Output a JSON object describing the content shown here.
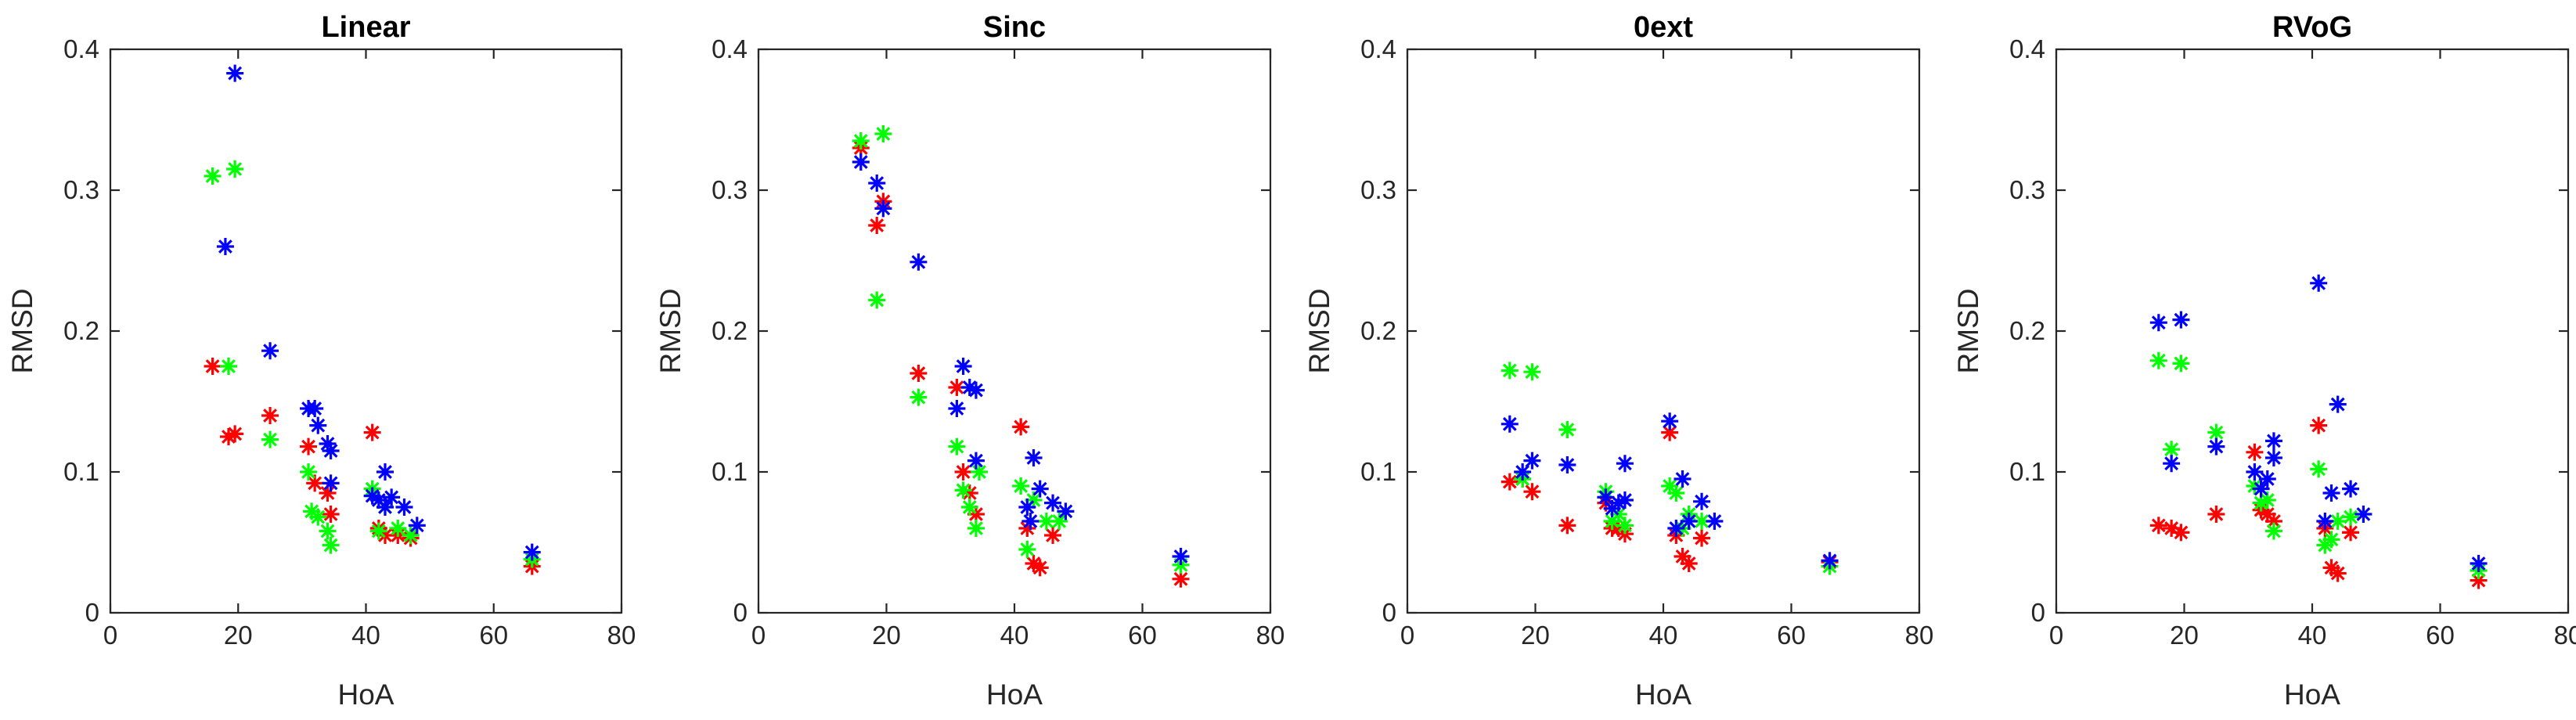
{
  "chart_data": [
    {
      "type": "scatter",
      "title": "Linear",
      "xlabel": "HoA",
      "ylabel": "RMSD",
      "xlim": [
        0,
        80
      ],
      "ylim": [
        0,
        0.4
      ],
      "xticks": [
        "0",
        "20",
        "40",
        "60",
        "80"
      ],
      "yticks": [
        "0",
        "0.1",
        "0.2",
        "0.3",
        "0.4"
      ],
      "marker": "asterisk",
      "series": [
        {
          "name": "red",
          "color": "#ff0000",
          "points": [
            [
              16,
              0.175
            ],
            [
              18.5,
              0.125
            ],
            [
              19.5,
              0.127
            ],
            [
              25,
              0.14
            ],
            [
              31,
              0.118
            ],
            [
              32,
              0.092
            ],
            [
              34,
              0.085
            ],
            [
              34.5,
              0.07
            ],
            [
              41,
              0.128
            ],
            [
              42,
              0.06
            ],
            [
              43,
              0.055
            ],
            [
              45,
              0.055
            ],
            [
              47,
              0.053
            ],
            [
              66,
              0.033
            ]
          ]
        },
        {
          "name": "green",
          "color": "#00ff00",
          "points": [
            [
              16,
              0.31
            ],
            [
              18.5,
              0.175
            ],
            [
              19.5,
              0.315
            ],
            [
              25,
              0.123
            ],
            [
              31,
              0.1
            ],
            [
              31.5,
              0.072
            ],
            [
              32.5,
              0.068
            ],
            [
              34,
              0.058
            ],
            [
              34.5,
              0.048
            ],
            [
              41,
              0.088
            ],
            [
              42,
              0.058
            ],
            [
              43,
              0.075
            ],
            [
              45,
              0.06
            ],
            [
              47,
              0.055
            ],
            [
              66,
              0.038
            ]
          ]
        },
        {
          "name": "blue",
          "color": "#0000ff",
          "points": [
            [
              18,
              0.26
            ],
            [
              19.5,
              0.383
            ],
            [
              25,
              0.186
            ],
            [
              31,
              0.145
            ],
            [
              32,
              0.145
            ],
            [
              32.5,
              0.133
            ],
            [
              34,
              0.12
            ],
            [
              34.5,
              0.115
            ],
            [
              34.5,
              0.092
            ],
            [
              41,
              0.083
            ],
            [
              42,
              0.08
            ],
            [
              43,
              0.075
            ],
            [
              43,
              0.1
            ],
            [
              44,
              0.082
            ],
            [
              46,
              0.075
            ],
            [
              48,
              0.062
            ],
            [
              66,
              0.043
            ]
          ]
        }
      ]
    },
    {
      "type": "scatter",
      "title": "Sinc",
      "xlabel": "HoA",
      "ylabel": "RMSD",
      "xlim": [
        0,
        80
      ],
      "ylim": [
        0,
        0.4
      ],
      "xticks": [
        "0",
        "20",
        "40",
        "60",
        "80"
      ],
      "yticks": [
        "0",
        "0.1",
        "0.2",
        "0.3",
        "0.4"
      ],
      "marker": "asterisk",
      "series": [
        {
          "name": "red",
          "color": "#ff0000",
          "points": [
            [
              16,
              0.33
            ],
            [
              18.5,
              0.275
            ],
            [
              19.5,
              0.292
            ],
            [
              25,
              0.17
            ],
            [
              31,
              0.16
            ],
            [
              32,
              0.1
            ],
            [
              33,
              0.085
            ],
            [
              34,
              0.07
            ],
            [
              41,
              0.132
            ],
            [
              42,
              0.06
            ],
            [
              43,
              0.035
            ],
            [
              44,
              0.032
            ],
            [
              46,
              0.055
            ],
            [
              66,
              0.024
            ]
          ]
        },
        {
          "name": "green",
          "color": "#00ff00",
          "points": [
            [
              16,
              0.335
            ],
            [
              18.5,
              0.222
            ],
            [
              19.5,
              0.34
            ],
            [
              25,
              0.153
            ],
            [
              31,
              0.118
            ],
            [
              32,
              0.087
            ],
            [
              33,
              0.075
            ],
            [
              34,
              0.06
            ],
            [
              34.5,
              0.1
            ],
            [
              41,
              0.09
            ],
            [
              42,
              0.045
            ],
            [
              43,
              0.08
            ],
            [
              45,
              0.065
            ],
            [
              47,
              0.065
            ],
            [
              66,
              0.034
            ]
          ]
        },
        {
          "name": "blue",
          "color": "#0000ff",
          "points": [
            [
              16,
              0.32
            ],
            [
              18.5,
              0.305
            ],
            [
              19.5,
              0.287
            ],
            [
              25,
              0.249
            ],
            [
              31,
              0.145
            ],
            [
              32,
              0.175
            ],
            [
              33,
              0.16
            ],
            [
              34,
              0.158
            ],
            [
              34,
              0.108
            ],
            [
              42,
              0.075
            ],
            [
              42.5,
              0.065
            ],
            [
              43,
              0.11
            ],
            [
              44,
              0.088
            ],
            [
              46,
              0.078
            ],
            [
              48,
              0.072
            ],
            [
              66,
              0.04
            ]
          ]
        }
      ]
    },
    {
      "type": "scatter",
      "title": "0ext",
      "xlabel": "HoA",
      "ylabel": "RMSD",
      "xlim": [
        0,
        80
      ],
      "ylim": [
        0,
        0.4
      ],
      "xticks": [
        "0",
        "20",
        "40",
        "60",
        "80"
      ],
      "yticks": [
        "0",
        "0.1",
        "0.2",
        "0.3",
        "0.4"
      ],
      "marker": "asterisk",
      "series": [
        {
          "name": "red",
          "color": "#ff0000",
          "points": [
            [
              16,
              0.093
            ],
            [
              18,
              0.095
            ],
            [
              19.5,
              0.086
            ],
            [
              25,
              0.062
            ],
            [
              31,
              0.078
            ],
            [
              32,
              0.06
            ],
            [
              33,
              0.06
            ],
            [
              34,
              0.056
            ],
            [
              41,
              0.128
            ],
            [
              42,
              0.055
            ],
            [
              43,
              0.04
            ],
            [
              44,
              0.035
            ],
            [
              46,
              0.053
            ],
            [
              66,
              0.036
            ]
          ]
        },
        {
          "name": "green",
          "color": "#00ff00",
          "points": [
            [
              16,
              0.172
            ],
            [
              18,
              0.095
            ],
            [
              19.5,
              0.171
            ],
            [
              25,
              0.13
            ],
            [
              31,
              0.086
            ],
            [
              32,
              0.065
            ],
            [
              33,
              0.07
            ],
            [
              34,
              0.062
            ],
            [
              41,
              0.09
            ],
            [
              42,
              0.085
            ],
            [
              43,
              0.06
            ],
            [
              44,
              0.07
            ],
            [
              46,
              0.065
            ],
            [
              66,
              0.033
            ]
          ]
        },
        {
          "name": "blue",
          "color": "#0000ff",
          "points": [
            [
              16,
              0.134
            ],
            [
              18,
              0.1
            ],
            [
              19.5,
              0.108
            ],
            [
              25,
              0.105
            ],
            [
              31,
              0.082
            ],
            [
              32,
              0.074
            ],
            [
              33,
              0.078
            ],
            [
              34,
              0.08
            ],
            [
              34,
              0.106
            ],
            [
              41,
              0.136
            ],
            [
              42,
              0.06
            ],
            [
              43,
              0.095
            ],
            [
              44,
              0.065
            ],
            [
              46,
              0.079
            ],
            [
              48,
              0.065
            ],
            [
              66,
              0.037
            ]
          ]
        }
      ]
    },
    {
      "type": "scatter",
      "title": "RVoG",
      "xlabel": "HoA",
      "ylabel": "RMSD",
      "xlim": [
        0,
        80
      ],
      "ylim": [
        0,
        0.4
      ],
      "xticks": [
        "0",
        "20",
        "40",
        "60",
        "80"
      ],
      "yticks": [
        "0",
        "0.1",
        "0.2",
        "0.3",
        "0.4"
      ],
      "marker": "asterisk",
      "series": [
        {
          "name": "red",
          "color": "#ff0000",
          "points": [
            [
              16,
              0.062
            ],
            [
              18,
              0.06
            ],
            [
              19.5,
              0.057
            ],
            [
              25,
              0.07
            ],
            [
              31,
              0.114
            ],
            [
              32,
              0.073
            ],
            [
              33,
              0.07
            ],
            [
              34,
              0.065
            ],
            [
              41,
              0.133
            ],
            [
              42,
              0.06
            ],
            [
              43,
              0.032
            ],
            [
              44,
              0.028
            ],
            [
              46,
              0.057
            ],
            [
              66,
              0.023
            ]
          ]
        },
        {
          "name": "green",
          "color": "#00ff00",
          "points": [
            [
              16,
              0.179
            ],
            [
              18,
              0.116
            ],
            [
              19.5,
              0.177
            ],
            [
              25,
              0.128
            ],
            [
              31,
              0.09
            ],
            [
              32,
              0.078
            ],
            [
              33,
              0.08
            ],
            [
              34,
              0.058
            ],
            [
              41,
              0.102
            ],
            [
              42,
              0.048
            ],
            [
              43,
              0.052
            ],
            [
              44,
              0.065
            ],
            [
              46,
              0.068
            ],
            [
              66,
              0.03
            ]
          ]
        },
        {
          "name": "blue",
          "color": "#0000ff",
          "points": [
            [
              16,
              0.206
            ],
            [
              18,
              0.106
            ],
            [
              19.5,
              0.208
            ],
            [
              25,
              0.118
            ],
            [
              31,
              0.1
            ],
            [
              32,
              0.088
            ],
            [
              33,
              0.095
            ],
            [
              34,
              0.122
            ],
            [
              34,
              0.11
            ],
            [
              41,
              0.234
            ],
            [
              42,
              0.065
            ],
            [
              43,
              0.085
            ],
            [
              44,
              0.148
            ],
            [
              46,
              0.088
            ],
            [
              48,
              0.07
            ],
            [
              66,
              0.035
            ]
          ]
        }
      ]
    }
  ]
}
